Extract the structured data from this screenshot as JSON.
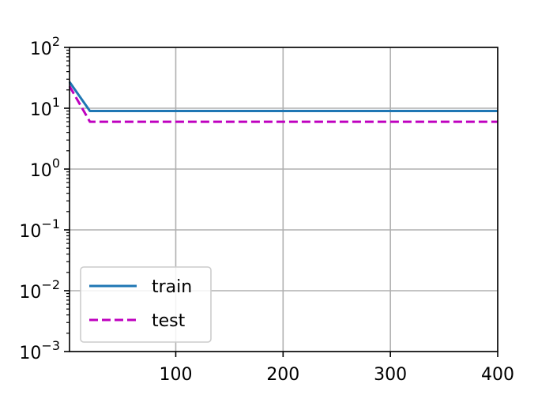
{
  "chart_data": {
    "type": "line",
    "title": "",
    "xlabel": "",
    "ylabel": "",
    "xlim": [
      1,
      400
    ],
    "ylim": [
      0.001,
      100
    ],
    "yscale": "log",
    "grid": true,
    "legend_position": "lower-left",
    "x_ticks": [
      100,
      200,
      300,
      400
    ],
    "x_tick_labels": [
      "100",
      "200",
      "300",
      "400"
    ],
    "y_ticks": [
      0.001,
      0.01,
      0.1,
      1,
      10,
      100
    ],
    "y_tick_labels": [
      {
        "base": "10",
        "exp": "−3"
      },
      {
        "base": "10",
        "exp": "−2"
      },
      {
        "base": "10",
        "exp": "−1"
      },
      {
        "base": "10",
        "exp": "0"
      },
      {
        "base": "10",
        "exp": "1"
      },
      {
        "base": "10",
        "exp": "2"
      }
    ],
    "series": [
      {
        "name": "train",
        "color": "#1f77b4",
        "style": "solid",
        "x": [
          1,
          20,
          40,
          100,
          200,
          300,
          400
        ],
        "y": [
          27,
          9.0,
          9.0,
          9.0,
          9.0,
          9.0,
          9.0
        ]
      },
      {
        "name": "test",
        "color": "#bf00bf",
        "style": "dashed",
        "x": [
          1,
          20,
          40,
          100,
          200,
          300,
          400
        ],
        "y": [
          23,
          6.0,
          6.0,
          6.0,
          6.0,
          6.0,
          6.0
        ]
      }
    ]
  }
}
